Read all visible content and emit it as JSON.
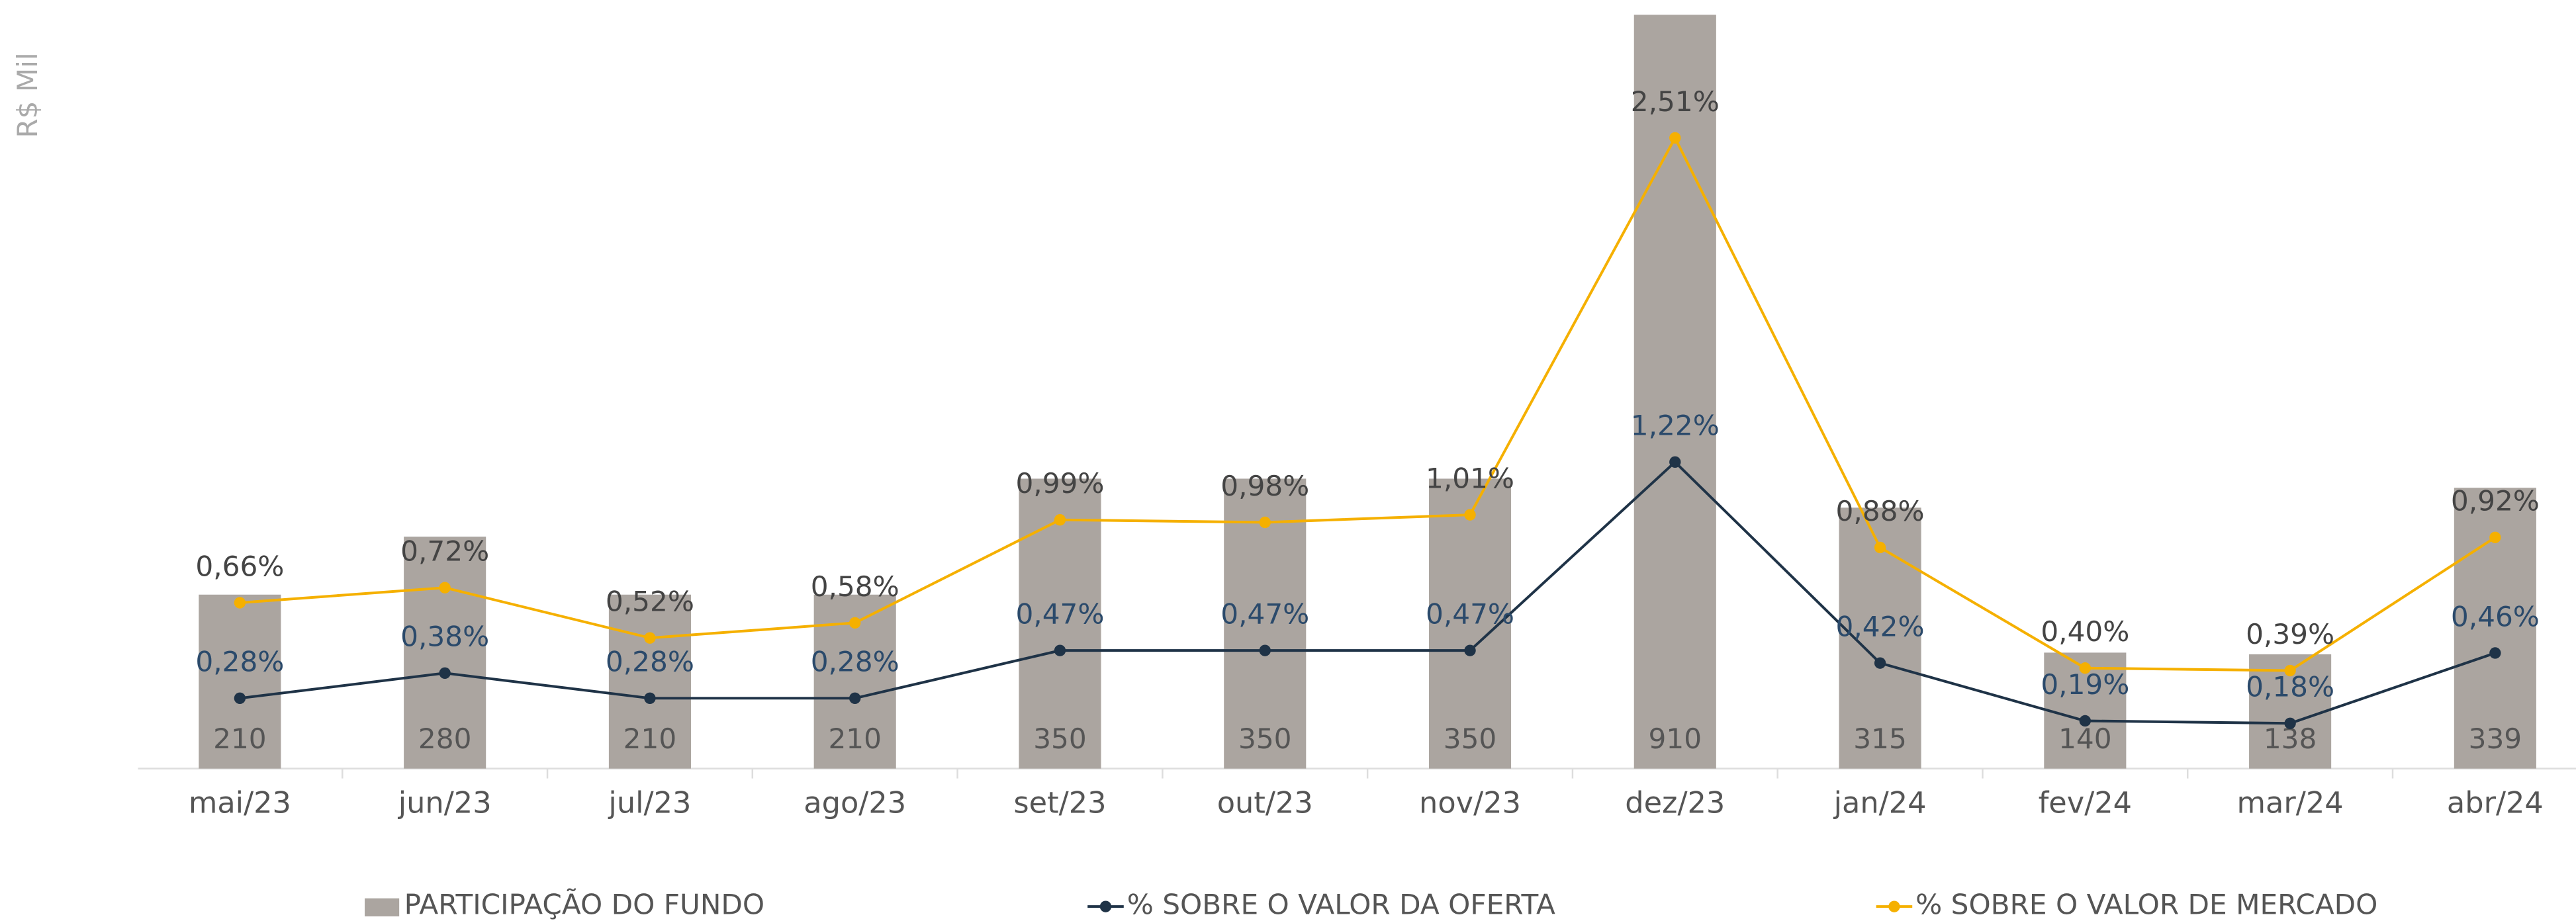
{
  "chart_data": {
    "type": "bar",
    "y_axis_label": "R$ Mil",
    "categories": [
      "mai/23",
      "jun/23",
      "jul/23",
      "ago/23",
      "set/23",
      "out/23",
      "nov/23",
      "dez/23",
      "jan/24",
      "fev/24",
      "mar/24",
      "abr/24"
    ],
    "series": [
      {
        "name": "PARTICIPAÇÃO DO FUNDO",
        "type": "bar",
        "color": "#aba5a0",
        "values": [
          210,
          280,
          210,
          210,
          350,
          350,
          350,
          910,
          315,
          140,
          138,
          339
        ]
      },
      {
        "name": "% SOBRE O VALOR DA OFERTA",
        "type": "line",
        "axis": "y2",
        "color": "#1f3347",
        "values": [
          0.28,
          0.38,
          0.28,
          0.28,
          0.47,
          0.47,
          0.47,
          1.22,
          0.42,
          0.19,
          0.18,
          0.46
        ],
        "value_labels": [
          "0,28%",
          "0,38%",
          "0,28%",
          "0,28%",
          "0,47%",
          "0,47%",
          "0,47%",
          "1,22%",
          "0,42%",
          "0,19%",
          "0,18%",
          "0,46%"
        ]
      },
      {
        "name": "% SOBRE O VALOR DE MERCADO",
        "type": "line",
        "axis": "y2",
        "color": "#f5b000",
        "values": [
          0.66,
          0.72,
          0.52,
          0.58,
          0.99,
          0.98,
          1.01,
          2.51,
          0.88,
          0.4,
          0.39,
          0.92
        ],
        "value_labels": [
          "0,66%",
          "0,72%",
          "0,52%",
          "0,58%",
          "0,99%",
          "0,98%",
          "1,01%",
          "2,51%",
          "0,88%",
          "0,40%",
          "0,39%",
          "0,92%"
        ]
      }
    ],
    "ylim": [
      0,
      910
    ],
    "y2lim": [
      0,
      3
    ]
  }
}
